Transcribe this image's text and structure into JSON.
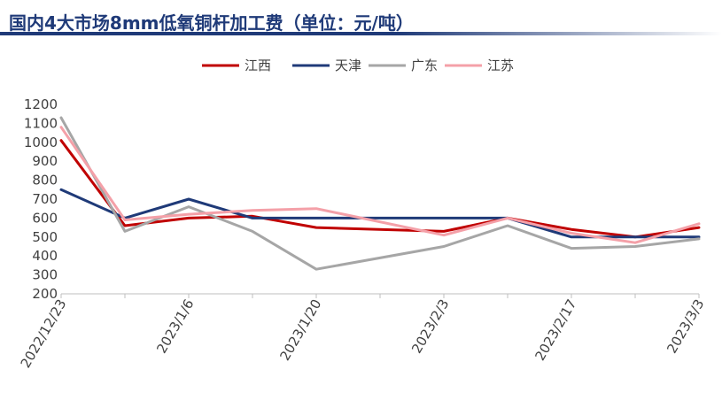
{
  "chart_data": {
    "type": "line",
    "title": "国内4大市场8mm低氧铜杆加工费（单位：元/吨）",
    "xlabel": "",
    "ylabel": "",
    "x": [
      "2022/12/23",
      "2022/12/30",
      "2023/1/6",
      "2023/1/13",
      "2023/1/20",
      "2023/1/27",
      "2023/2/3",
      "2023/2/10",
      "2023/2/17",
      "2023/2/24",
      "2023/3/3"
    ],
    "x_tick_labels": [
      "2022/12/23",
      "2023/1/6",
      "2023/1/20",
      "2023/2/3",
      "2023/2/17",
      "2023/3/3"
    ],
    "y_ticks": [
      200,
      300,
      400,
      500,
      600,
      700,
      800,
      900,
      1000,
      1100,
      1200
    ],
    "ylim": [
      200,
      1200
    ],
    "grid": false,
    "legend_position": "top-center",
    "series": [
      {
        "name": "江西",
        "color": "#c00000",
        "values": [
          1010,
          560,
          600,
          610,
          550,
          null,
          530,
          600,
          540,
          500,
          550
        ]
      },
      {
        "name": "天津",
        "color": "#1f3a78",
        "values": [
          750,
          600,
          700,
          600,
          600,
          null,
          600,
          600,
          500,
          500,
          500
        ]
      },
      {
        "name": "广东",
        "color": "#a6a6a6",
        "values": [
          1130,
          530,
          660,
          530,
          330,
          null,
          450,
          560,
          440,
          450,
          490
        ]
      },
      {
        "name": "江苏",
        "color": "#f4a0a8",
        "values": [
          1080,
          590,
          620,
          640,
          650,
          null,
          510,
          600,
          520,
          470,
          570
        ]
      }
    ]
  }
}
